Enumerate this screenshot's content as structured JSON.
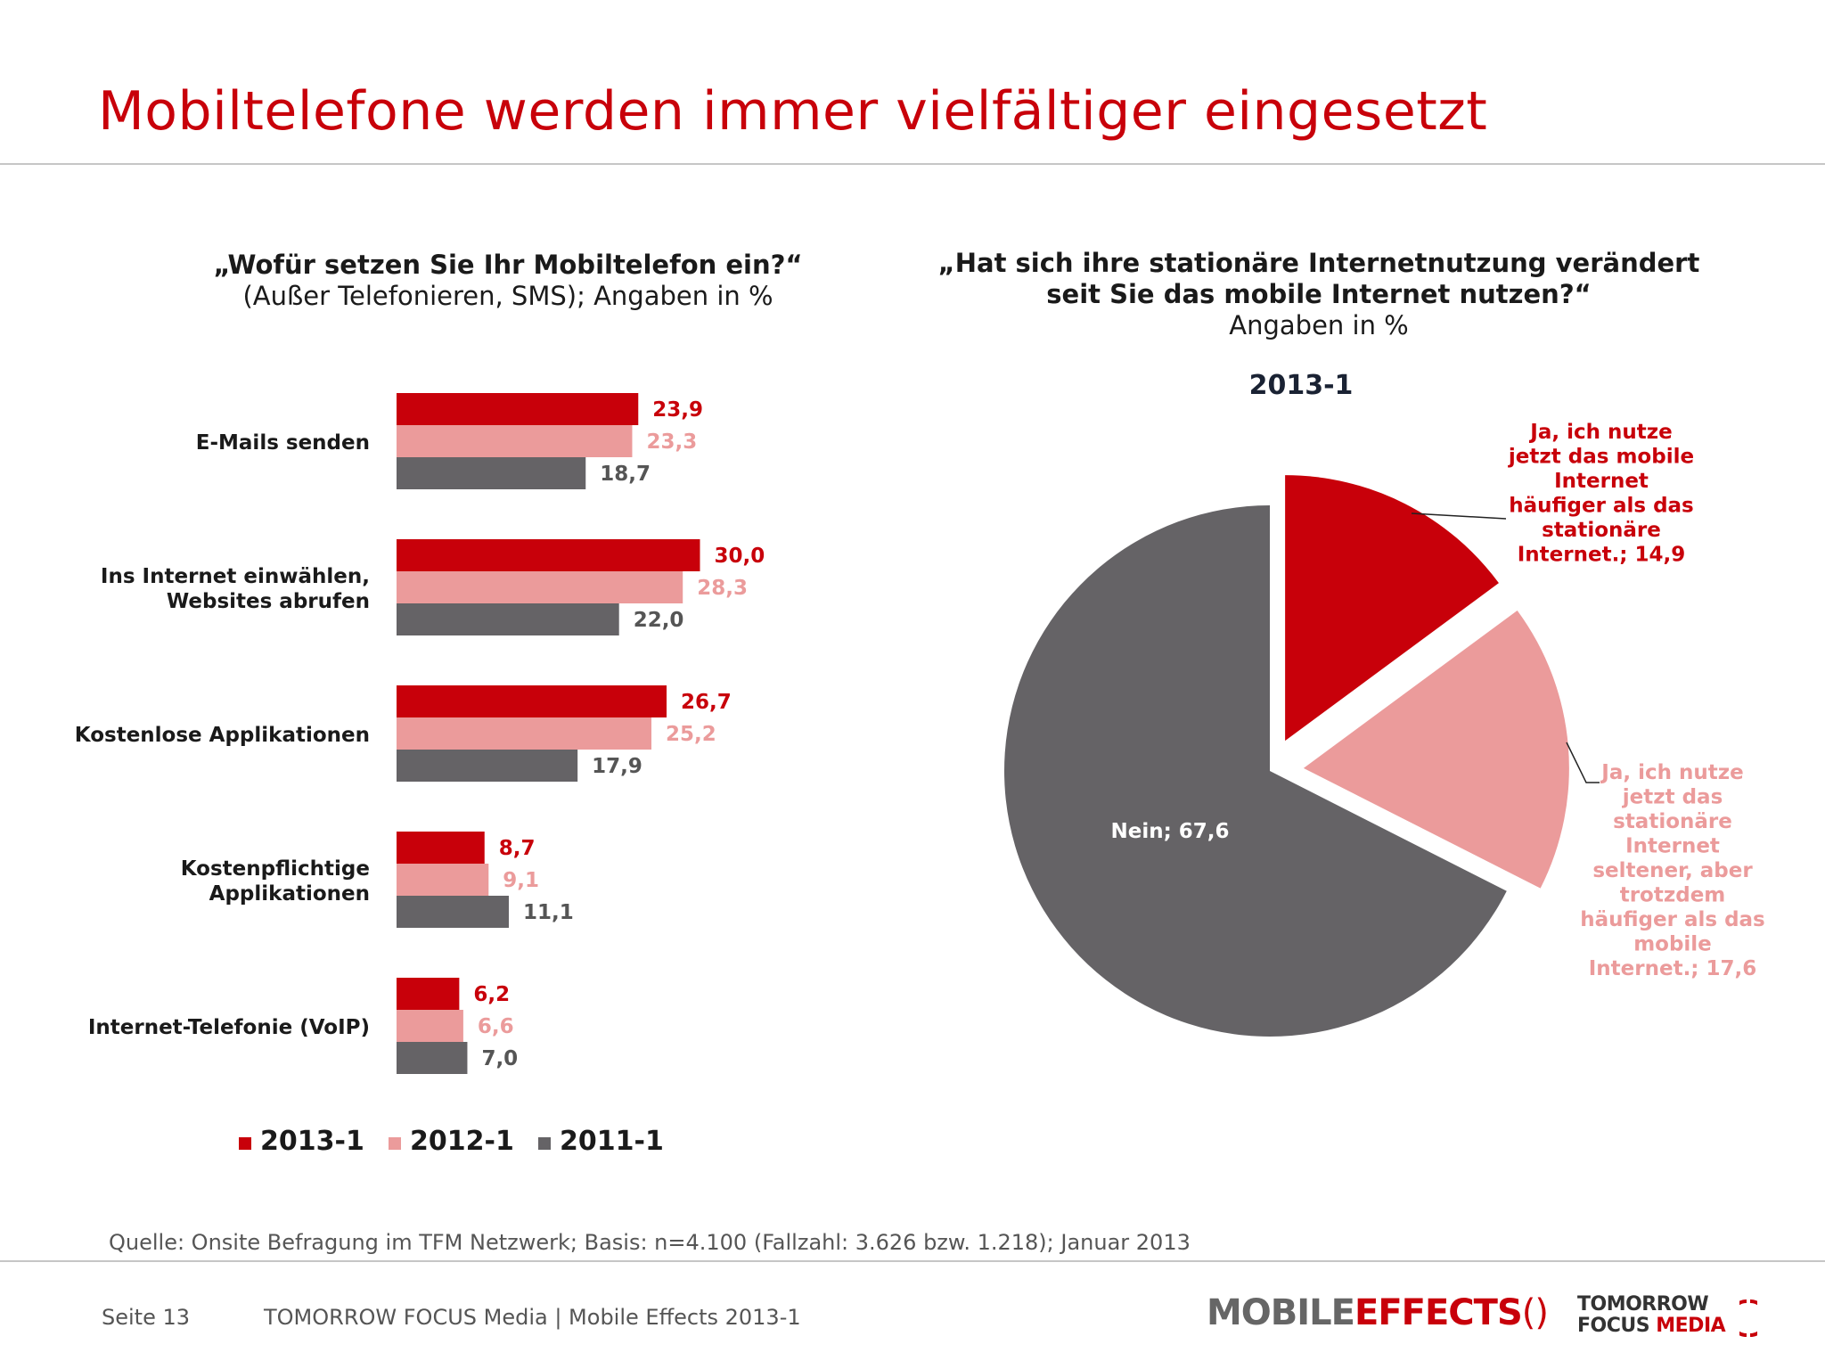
{
  "title": "Mobiltelefone werden immer vielfältiger eingesetzt",
  "left_chart": {
    "question": "„Wofür setzen Sie Ihr Mobiltelefon ein?“",
    "note": "(Außer Telefonieren, SMS); Angaben in %"
  },
  "right_chart": {
    "question_line1": "„Hat sich ihre stationäre Internetnutzung verändert",
    "question_line2": "seit Sie das mobile Internet nutzen?“",
    "note": "Angaben in %",
    "period": "2013-1"
  },
  "colors": {
    "c2013": "#c8000a",
    "c2012": "#eb9b9b",
    "c2011": "#656366",
    "title_red": "#c8000a"
  },
  "chart_data": [
    {
      "type": "bar",
      "orientation": "horizontal",
      "categories": [
        [
          "E-Mails senden"
        ],
        [
          "Ins Internet einwählen,",
          "Websites abrufen"
        ],
        [
          "Kostenlose Applikationen"
        ],
        [
          "Kostenpflichtige",
          "Applikationen"
        ],
        [
          "Internet-Telefonie (VoIP)"
        ]
      ],
      "series": [
        {
          "name": "2013-1",
          "values": [
            23.9,
            30.0,
            26.7,
            8.7,
            6.2
          ],
          "labels": [
            "23,9",
            "30,0",
            "26,7",
            "8,7",
            "6,2"
          ],
          "color": "#c8000a"
        },
        {
          "name": "2012-1",
          "values": [
            23.3,
            28.3,
            25.2,
            9.1,
            6.6
          ],
          "labels": [
            "23,3",
            "28,3",
            "25,2",
            "9,1",
            "6,6"
          ],
          "color": "#eb9b9b"
        },
        {
          "name": "2011-1",
          "values": [
            18.7,
            22.0,
            17.9,
            11.1,
            7.0
          ],
          "labels": [
            "18,7",
            "22,0",
            "17,9",
            "11,1",
            "7,0"
          ],
          "color": "#656366"
        }
      ],
      "legend_position": "bottom"
    },
    {
      "type": "pie",
      "slices": [
        {
          "label": [
            "Ja, ich nutze",
            "jetzt das mobile",
            "Internet",
            "häufiger als das",
            "stationäre",
            "Internet.; 14,9"
          ],
          "value": 14.9,
          "color": "#c8000a",
          "label_color": "#c8000a",
          "exploded": true
        },
        {
          "label": [
            "Ja, ich nutze",
            "jetzt das",
            "stationäre",
            "Internet",
            "seltener, aber",
            "trotzdem",
            "häufiger als das",
            "mobile",
            "Internet.; 17,6"
          ],
          "value": 17.6,
          "color": "#eb9b9b",
          "label_color": "#eb9b9b",
          "exploded": true
        },
        {
          "label": [
            "Nein; 67,6"
          ],
          "value": 67.6,
          "color": "#656366",
          "label_color": "#ffffff",
          "exploded": false
        }
      ]
    }
  ],
  "source": "Quelle: Onsite Befragung im TFM Netzwerk; Basis: n=4.100 (Fallzahl: 3.626 bzw. 1.218); Januar 2013",
  "footer": {
    "page": "Seite 13",
    "company": "TOMORROW FOCUS Media  |  Mobile Effects 2013-1"
  },
  "logos": {
    "mobile_effects_a": "MOBILE",
    "mobile_effects_b": "EFFECTS",
    "tfm_line1": "TOMORROW",
    "tfm_line2a": "FOCUS",
    "tfm_line2b": "MEDIA"
  }
}
